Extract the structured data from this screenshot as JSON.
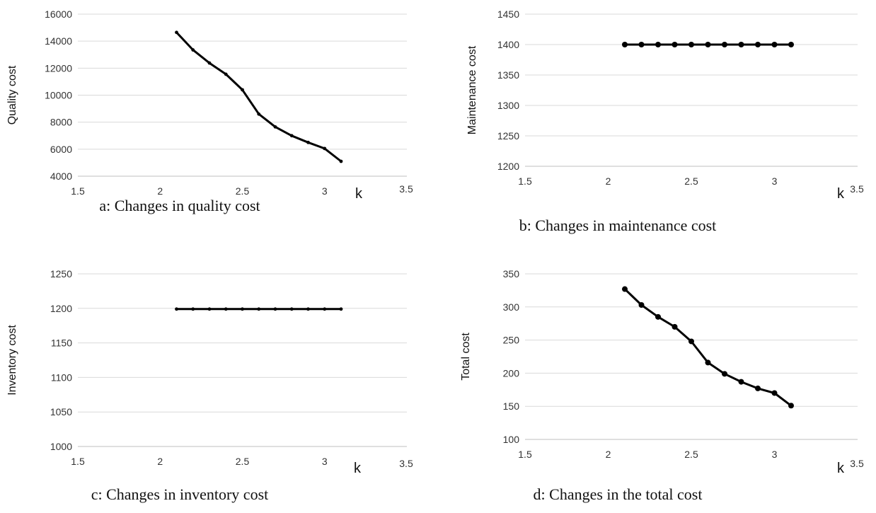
{
  "chart_data": [
    {
      "type": "line",
      "caption": "a: Changes in quality cost",
      "xlabel": "k",
      "ylabel": "Quality cost",
      "xlim": [
        1.5,
        3.5
      ],
      "xticks": [
        "1.5",
        "2",
        "2.5",
        "3",
        "3.5"
      ],
      "ylim": [
        4000,
        16000
      ],
      "yticks": [
        "4000",
        "6000",
        "8000",
        "10000",
        "12000",
        "14000",
        "16000"
      ],
      "grid": "horizontal",
      "markers": "small",
      "x": [
        2.1,
        2.2,
        2.3,
        2.4,
        2.5,
        2.6,
        2.7,
        2.8,
        2.9,
        3.0,
        3.1
      ],
      "y": [
        14650,
        13350,
        12380,
        11550,
        10400,
        8600,
        7650,
        7000,
        6500,
        6050,
        5100
      ]
    },
    {
      "type": "line",
      "caption": "b: Changes in maintenance cost",
      "xlabel": "k",
      "ylabel": "Maintenance cost",
      "xlim": [
        1.5,
        3.5
      ],
      "xticks": [
        "1.5",
        "2",
        "2.5",
        "3",
        "3.5"
      ],
      "ylim": [
        1200,
        1450
      ],
      "yticks": [
        "1200",
        "1250",
        "1300",
        "1350",
        "1400",
        "1450"
      ],
      "grid": "horizontal",
      "markers": "large",
      "x": [
        2.1,
        2.2,
        2.3,
        2.4,
        2.5,
        2.6,
        2.7,
        2.8,
        2.9,
        3.0,
        3.1
      ],
      "y": [
        1400,
        1400,
        1400,
        1400,
        1400,
        1400,
        1400,
        1400,
        1400,
        1400,
        1400
      ]
    },
    {
      "type": "line",
      "caption": "c: Changes in inventory cost",
      "xlabel": "k",
      "ylabel": "Inventory cost",
      "xlim": [
        1.5,
        3.5
      ],
      "xticks": [
        "1.5",
        "2",
        "2.5",
        "3",
        "3.5"
      ],
      "ylim": [
        1000,
        1250
      ],
      "yticks": [
        "1000",
        "1050",
        "1100",
        "1150",
        "1200",
        "1250"
      ],
      "grid": "horizontal",
      "markers": "small",
      "x": [
        2.1,
        2.2,
        2.3,
        2.4,
        2.5,
        2.6,
        2.7,
        2.8,
        2.9,
        3.0,
        3.1
      ],
      "y": [
        1199,
        1199,
        1199,
        1199,
        1199,
        1199,
        1199,
        1199,
        1199,
        1199,
        1199
      ]
    },
    {
      "type": "line",
      "caption": "d: Changes in the total cost",
      "xlabel": "k",
      "ylabel": "Total cost",
      "xlim": [
        1.5,
        3.5
      ],
      "xticks": [
        "1.5",
        "2",
        "2.5",
        "3",
        "3.5"
      ],
      "ylim": [
        100,
        350
      ],
      "yticks": [
        "100",
        "150",
        "200",
        "250",
        "300",
        "350"
      ],
      "grid": "horizontal",
      "markers": "large",
      "x": [
        2.1,
        2.2,
        2.3,
        2.4,
        2.5,
        2.6,
        2.7,
        2.8,
        2.9,
        3.0,
        3.1
      ],
      "y": [
        327,
        303,
        285,
        270,
        248,
        216,
        199,
        187,
        177,
        170,
        151
      ]
    }
  ]
}
